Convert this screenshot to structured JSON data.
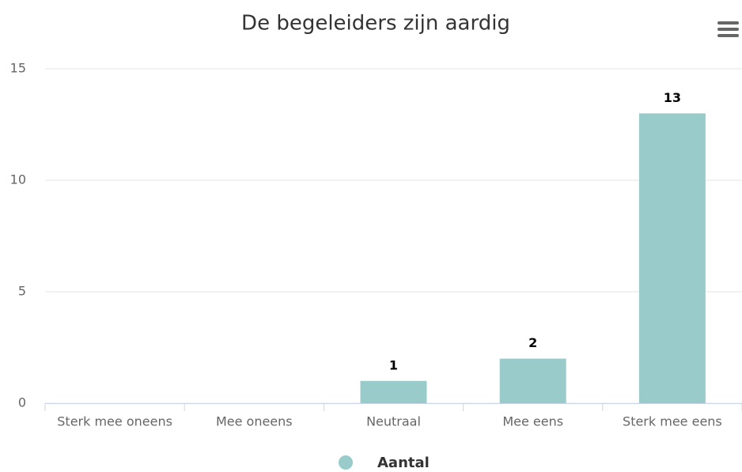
{
  "chart_data": {
    "type": "bar",
    "title": "De begeleiders zijn aardig",
    "categories": [
      "Sterk mee oneens",
      "Mee oneens",
      "Neutraal",
      "Mee eens",
      "Sterk mee eens"
    ],
    "series": [
      {
        "name": "Aantal",
        "color": "#99cbcb",
        "values": [
          0,
          0,
          1,
          2,
          13
        ]
      }
    ],
    "ylim": [
      0,
      15
    ],
    "yticks": [
      0,
      5,
      10,
      15
    ],
    "grid": true
  }
}
